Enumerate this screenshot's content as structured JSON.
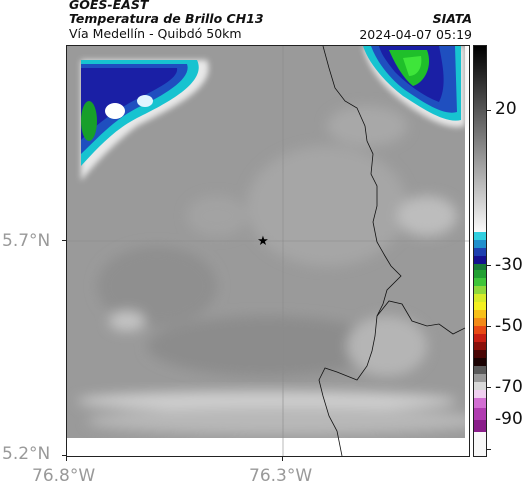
{
  "header": {
    "source": "GOES-EAST",
    "product": "Temperatura de Brillo CH13",
    "region": "Vía Medellín - Quibdó 50km",
    "organization": "SIATA",
    "datetime": "2024-04-07 05:19"
  },
  "map": {
    "y_tick_labels": [
      "5.7°N",
      "5.2°N"
    ],
    "x_tick_labels": [
      "76.8°W",
      "76.3°W"
    ],
    "marker": "star"
  },
  "colorbar": {
    "tick_labels": [
      "20",
      "-30",
      "-50",
      "-70",
      "-90"
    ]
  },
  "colors": {
    "frame": "#222222",
    "gridline": "#9a9a9a",
    "boundary": "#111111"
  }
}
